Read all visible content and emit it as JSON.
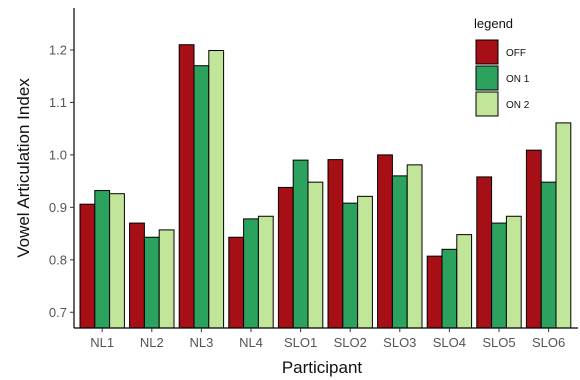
{
  "chart_data": {
    "type": "bar",
    "xlabel": "Participant",
    "ylabel": "Vowel Articulation Index",
    "ylim": [
      0.67,
      1.28
    ],
    "yticks": [
      "0.7",
      "0.8",
      "0.9",
      "1.0",
      "1.1",
      "1.2"
    ],
    "categories": [
      "NL1",
      "NL2",
      "NL3",
      "NL4",
      "SLO1",
      "SLO2",
      "SLO3",
      "SLO4",
      "SLO5",
      "SLO6"
    ],
    "legend": {
      "title": "legend",
      "placement": "top-right"
    },
    "series": [
      {
        "name": "OFF",
        "color": "#a50f15",
        "values": [
          0.906,
          0.87,
          1.21,
          0.843,
          0.938,
          0.991,
          1.0,
          0.807,
          0.958,
          1.009
        ]
      },
      {
        "name": "ON 1",
        "color": "#2ca25f",
        "values": [
          0.932,
          0.843,
          1.17,
          0.878,
          0.99,
          0.908,
          0.96,
          0.82,
          0.87,
          0.948
        ]
      },
      {
        "name": "ON 2",
        "color": "#c2e699",
        "values": [
          0.926,
          0.857,
          1.199,
          0.883,
          0.948,
          0.921,
          0.981,
          0.848,
          0.883,
          1.061
        ]
      }
    ]
  }
}
